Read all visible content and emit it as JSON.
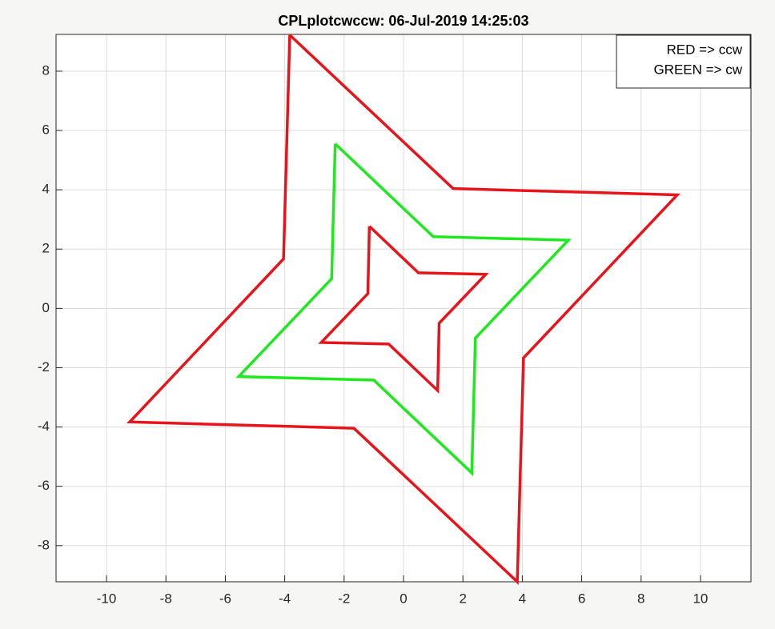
{
  "chart_data": {
    "type": "line",
    "title": "CPLplotcwccw: 06-Jul-2019 14:25:03",
    "xlim": [
      -11.7,
      11.7
    ],
    "ylim": [
      -9.22,
      9.24
    ],
    "xticks": [
      -10,
      -8,
      -6,
      -4,
      -2,
      0,
      2,
      4,
      6,
      8,
      10
    ],
    "yticks": [
      -8,
      -6,
      -4,
      -2,
      0,
      2,
      4,
      6,
      8
    ],
    "grid": true,
    "legend_position": "upper-right",
    "series": [
      {
        "name": "RED => ccw",
        "color": "#e8141c",
        "x": [
          -3.83,
          1.67,
          9.22,
          4.04,
          3.83,
          -1.67,
          -9.22,
          -4.04,
          -3.83
        ],
        "values": [
          9.22,
          4.04,
          3.83,
          -1.67,
          -9.22,
          -4.04,
          -3.83,
          1.67,
          9.22
        ]
      },
      {
        "name": "GREEN => cw",
        "color": "#1ee81e",
        "x": [
          -2.3,
          1.0,
          5.55,
          2.42,
          2.3,
          -1.0,
          -5.55,
          -2.42,
          -2.3
        ],
        "values": [
          5.55,
          2.42,
          2.3,
          -1.0,
          -5.55,
          -2.42,
          -2.3,
          1.0,
          5.55
        ]
      },
      {
        "color": "#e8141c",
        "x": [
          -1.15,
          0.5,
          2.77,
          1.2,
          1.15,
          -0.5,
          -2.77,
          -1.2,
          -1.15
        ],
        "values": [
          2.77,
          1.2,
          1.15,
          -0.5,
          -2.77,
          -1.2,
          -1.15,
          0.5,
          2.77
        ]
      }
    ]
  }
}
